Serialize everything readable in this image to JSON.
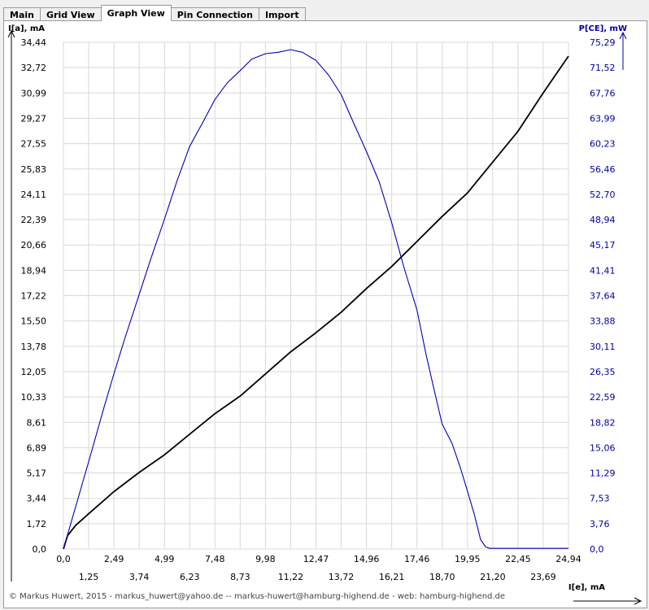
{
  "tabs": [
    {
      "label": "Main",
      "active": false
    },
    {
      "label": "Grid View",
      "active": false
    },
    {
      "label": "Graph View",
      "active": true
    },
    {
      "label": "Pin Connection",
      "active": false
    },
    {
      "label": "Import",
      "active": false
    }
  ],
  "footer": {
    "text": "© Markus Huwert, 2015  -  markus_huwert@yahoo.de  --  markus-huwert@hamburg-highend.de  -  web: hamburg-highend.de"
  },
  "colors": {
    "left_axis": "#000000",
    "right_axis": "#0000a0",
    "grid": "#d8d8d8",
    "ia_series": "#000000",
    "pce_series": "#0000b4"
  },
  "chart_data": {
    "type": "line",
    "xlabel": "I[e], mA",
    "ylabel_left": "I[a], mA",
    "ylabel_right": "P[CE], mW",
    "x_ticks": [
      "0,0",
      "1,25",
      "2,49",
      "3,74",
      "4,99",
      "6,23",
      "7,48",
      "8,73",
      "9,98",
      "11,22",
      "12,47",
      "13,72",
      "14,96",
      "16,21",
      "17,46",
      "18,70",
      "19,95",
      "21,20",
      "22,45",
      "23,69",
      "24,94"
    ],
    "y_ticks_left": [
      "0,0",
      "1,72",
      "3,44",
      "5,17",
      "6,89",
      "8,61",
      "10,33",
      "12,05",
      "13,78",
      "15,50",
      "17,22",
      "18,94",
      "20,66",
      "22,39",
      "24,11",
      "25,83",
      "27,55",
      "29,27",
      "30,99",
      "32,72",
      "34,44"
    ],
    "y_ticks_right": [
      "0,0",
      "3,76",
      "7,53",
      "11,29",
      "15,06",
      "18,82",
      "22,59",
      "26,35",
      "30,11",
      "33,88",
      "37,64",
      "41,41",
      "45,17",
      "48,94",
      "52,70",
      "56,46",
      "60,23",
      "63,99",
      "67,76",
      "71,52",
      "75,29"
    ],
    "xlim": [
      0,
      24.94
    ],
    "ylim_left": [
      0,
      34.44
    ],
    "ylim_right": [
      0,
      75.29
    ],
    "grid": true,
    "series": [
      {
        "name": "I[a]",
        "axis": "left",
        "x": [
          0,
          0.2,
          0.6,
          1.25,
          2.49,
          3.74,
          4.99,
          6.23,
          7.48,
          8.73,
          9.98,
          11.22,
          12.47,
          13.72,
          14.96,
          16.21,
          17.46,
          18.7,
          19.95,
          21.2,
          22.45,
          23.69,
          24.94
        ],
        "values": [
          0,
          0.9,
          1.6,
          2.4,
          3.9,
          5.2,
          6.4,
          7.8,
          9.2,
          10.4,
          11.9,
          13.4,
          14.7,
          16.1,
          17.7,
          19.2,
          20.9,
          22.6,
          24.2,
          26.3,
          28.4,
          31.0,
          33.5
        ]
      },
      {
        "name": "P[CE]",
        "axis": "right",
        "x": [
          0,
          0.5,
          1.25,
          2.0,
          2.49,
          3.0,
          3.74,
          4.3,
          4.99,
          5.6,
          6.23,
          6.9,
          7.48,
          8.1,
          8.73,
          9.3,
          9.98,
          10.6,
          11.22,
          11.8,
          12.47,
          13.1,
          13.72,
          14.3,
          14.96,
          15.6,
          16.21,
          16.8,
          17.46,
          17.9,
          18.3,
          18.7,
          19.2,
          19.6,
          19.95,
          20.3,
          20.6,
          20.85,
          21.05,
          21.2,
          21.5,
          22.45,
          23.69,
          24.94
        ],
        "values": [
          0,
          5.2,
          13.0,
          21.0,
          26.0,
          31.0,
          37.8,
          43.0,
          49.0,
          54.6,
          59.8,
          63.5,
          66.8,
          69.3,
          71.1,
          72.8,
          73.6,
          73.8,
          74.2,
          73.8,
          72.6,
          70.4,
          67.5,
          63.5,
          59.1,
          54.5,
          48.5,
          42.0,
          35.5,
          29.0,
          23.7,
          18.6,
          15.6,
          12.1,
          8.6,
          5.0,
          1.4,
          0.3,
          0.1,
          0.1,
          0.1,
          0.1,
          0.1,
          0.1
        ]
      }
    ]
  }
}
